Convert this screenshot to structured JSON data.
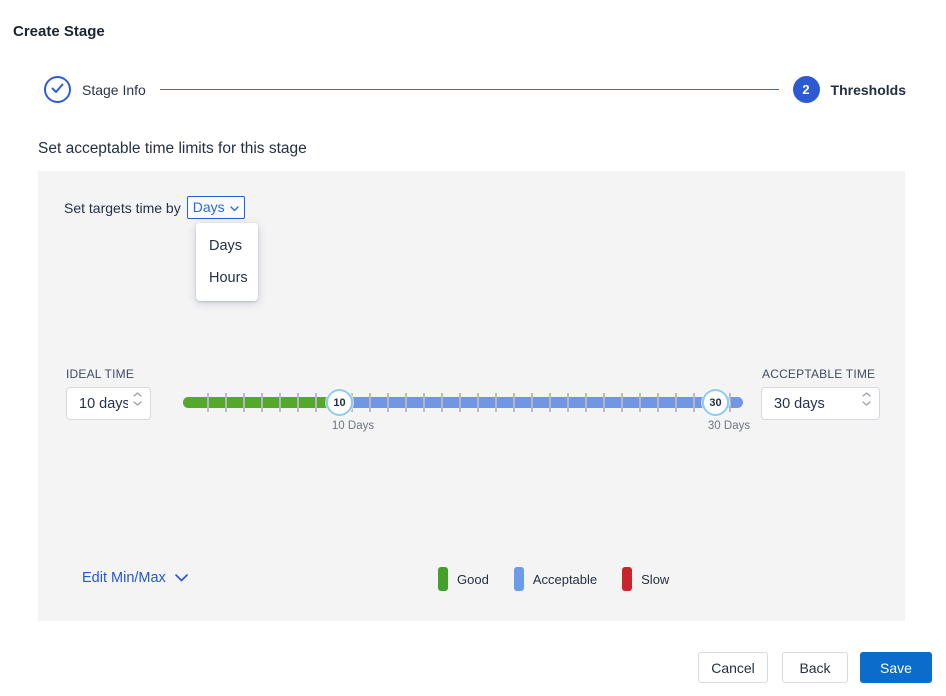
{
  "page": {
    "title": "Create Stage"
  },
  "stepper": {
    "steps": [
      {
        "label": "Stage Info",
        "state": "complete"
      },
      {
        "number": "2",
        "label": "Thresholds",
        "state": "active"
      }
    ]
  },
  "section": {
    "heading": "Set acceptable time limits for this stage"
  },
  "panel": {
    "target_time_label": "Set targets time by",
    "target_time_dropdown": {
      "value": "Days",
      "options": [
        "Days",
        "Hours"
      ]
    },
    "ideal": {
      "label": "IDEAL TIME",
      "value": "10 days"
    },
    "acceptable": {
      "label": "ACCEPTABLE TIME",
      "value": "30 days"
    },
    "slider": {
      "lower_value": "10",
      "upper_value": "30",
      "lower_caption": "10 Days",
      "upper_caption": "30 Days"
    },
    "edit_minmax_label": "Edit Min/Max",
    "legend": [
      {
        "label": "Good",
        "color": "#43a02b"
      },
      {
        "label": "Acceptable",
        "color": "#6c9be8"
      },
      {
        "label": "Slow",
        "color": "#c9252d"
      }
    ]
  },
  "footer": {
    "cancel_label": "Cancel",
    "back_label": "Back",
    "save_label": "Save"
  },
  "colors": {
    "accent_blue": "#2c5ad2",
    "save_blue": "#0b6ccb",
    "bar_green": "#55a82b",
    "bar_blue": "#7096e4",
    "panel_gray": "#f4f4f5"
  }
}
